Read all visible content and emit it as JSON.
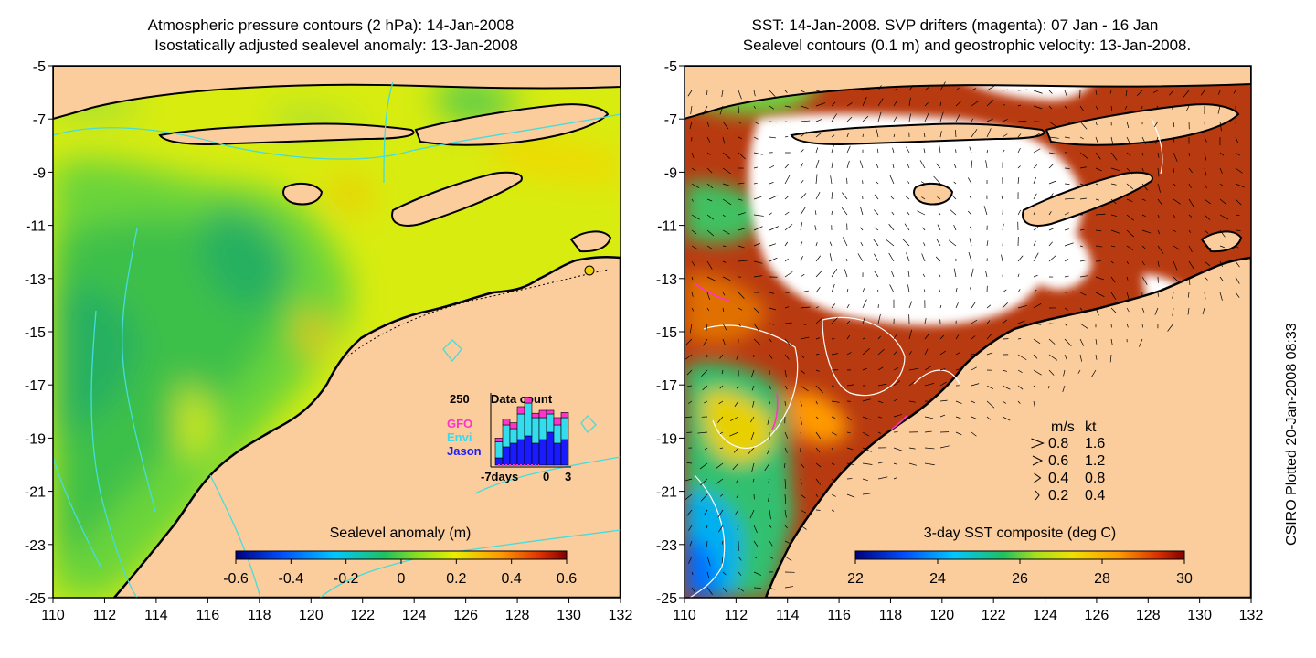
{
  "left_map": {
    "title_line1": "Atmospheric pressure contours (2 hPa): 14-Jan-2008",
    "title_line2": "Isostatically adjusted sealevel anomaly: 13-Jan-2008",
    "lon_ticks": [
      "110",
      "112",
      "114",
      "116",
      "118",
      "120",
      "122",
      "124",
      "126",
      "128",
      "130",
      "132"
    ],
    "lat_ticks": [
      "-5",
      "-7",
      "-9",
      "-11",
      "-13",
      "-15",
      "-17",
      "-19",
      "-21",
      "-23",
      "-25"
    ],
    "colorbar": {
      "label": "Sealevel anomaly (m)",
      "ticks": [
        "-0.6",
        "-0.4",
        "-0.2",
        "0",
        "0.2",
        "0.4",
        "0.6"
      ],
      "range": [
        -0.6,
        0.6
      ]
    },
    "data_count": {
      "max_label": "250",
      "title": "Data count",
      "legend": [
        {
          "name": "GFO",
          "color": "#ff33cc"
        },
        {
          "name": "Envi",
          "color": "#33ddee"
        },
        {
          "name": "Jason",
          "color": "#1a1aff"
        }
      ],
      "x_labels": [
        "-7days",
        "0",
        "3"
      ],
      "bars": [
        {
          "jason": 0.1,
          "envi": 0.22,
          "gfo": 0.05
        },
        {
          "jason": 0.25,
          "envi": 0.3,
          "gfo": 0.08
        },
        {
          "jason": 0.3,
          "envi": 0.2,
          "gfo": 0.08
        },
        {
          "jason": 0.35,
          "envi": 0.35,
          "gfo": 0.1
        },
        {
          "jason": 0.4,
          "envi": 0.45,
          "gfo": 0.08
        },
        {
          "jason": 0.3,
          "envi": 0.35,
          "gfo": 0.06
        },
        {
          "jason": 0.35,
          "envi": 0.3,
          "gfo": 0.1
        },
        {
          "jason": 0.45,
          "envi": 0.25,
          "gfo": 0.05
        },
        {
          "jason": 0.3,
          "envi": 0.25,
          "gfo": 0.1
        },
        {
          "jason": 0.35,
          "envi": 0.3,
          "gfo": 0.07
        }
      ]
    }
  },
  "right_map": {
    "title_line1": "SST: 14-Jan-2008. SVP drifters (magenta): 07 Jan - 16 Jan",
    "title_line2": "Sealevel contours (0.1 m) and geostrophic velocity: 13-Jan-2008.",
    "lon_ticks": [
      "110",
      "112",
      "114",
      "116",
      "118",
      "120",
      "122",
      "124",
      "126",
      "128",
      "130",
      "132"
    ],
    "lat_ticks": [
      "-5",
      "-7",
      "-9",
      "-11",
      "-13",
      "-15",
      "-17",
      "-19",
      "-21",
      "-23",
      "-25"
    ],
    "colorbar": {
      "label": "3-day SST composite (deg C)",
      "ticks": [
        "22",
        "24",
        "26",
        "28",
        "30"
      ],
      "range": [
        22,
        30
      ]
    },
    "velocity_legend": {
      "header_ms": "m/s",
      "header_kt": "kt",
      "rows": [
        {
          "ms": "0.8",
          "kt": "1.6"
        },
        {
          "ms": "0.6",
          "kt": "1.2"
        },
        {
          "ms": "0.4",
          "kt": "0.8"
        },
        {
          "ms": "0.2",
          "kt": "0.4"
        }
      ]
    }
  },
  "side_caption": "CSIRO Plotted 20-Jan-2008 08:33",
  "colors": {
    "land": "#fbcc9c",
    "coast": "#000000",
    "contour_cyan": "#44dddd",
    "sst_warm": "#b83a10",
    "sst_cloud": "#ffffff"
  }
}
